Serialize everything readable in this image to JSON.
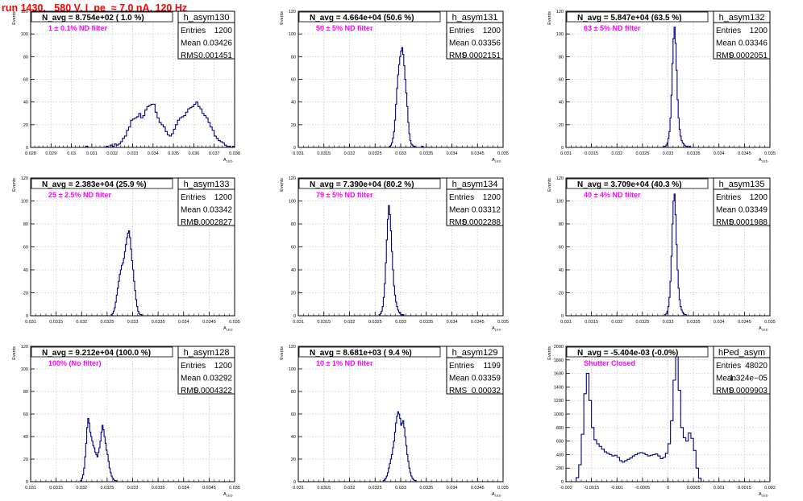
{
  "header": {
    "run_title": "run 1430,   580 V, I_pe  ≈ 7.0 nA, 120 Hz"
  },
  "colors": {
    "title": "#ff0000",
    "histogram_line": "#000080",
    "annotation": "#ff00ff",
    "grid": "#c8c8c8"
  },
  "chart_data": [
    {
      "type": "histogram",
      "name": "h_asym130",
      "stats": {
        "Entries": "1200",
        "Mean": "0.03426",
        "RMS": "0.001451"
      },
      "navg_text": "N_avg = 8.754e+02 ( 1.0 %)",
      "filter_text": "1 ± 0.1% ND filter",
      "xlabel": "A",
      "xlabel_sub": "LED",
      "ylabel": "Events",
      "xlim": [
        0.028,
        0.038
      ],
      "ylim": [
        0,
        120
      ],
      "xticks": [
        0.028,
        0.029,
        0.03,
        0.031,
        0.032,
        0.033,
        0.034,
        0.035,
        0.036,
        0.037,
        0.038
      ],
      "xtick_labels": [
        "0.028",
        "0.029",
        "0.03",
        "0.031",
        "0.032",
        "0.033",
        "0.034",
        "0.035",
        "0.036",
        "0.037",
        "0.038"
      ],
      "yticks": [
        0,
        20,
        40,
        60,
        80,
        100,
        120
      ],
      "ytick_labels": [
        "0",
        "20",
        "40",
        "60",
        "80",
        "100",
        "120"
      ],
      "bins": {
        "start": 0.0307,
        "width": 0.0001,
        "counts": [
          1,
          0,
          0,
          0,
          0,
          0,
          0,
          0,
          0,
          0,
          1,
          0,
          2,
          1,
          3,
          2,
          3,
          5,
          8,
          10,
          15,
          18,
          24,
          25,
          26,
          27,
          30,
          26,
          28,
          33,
          36,
          37,
          38,
          38,
          31,
          26,
          22,
          20,
          18,
          14,
          11,
          10,
          12,
          16,
          20,
          24,
          26,
          27,
          28,
          31,
          34,
          35,
          36,
          38,
          40,
          36,
          34,
          30,
          28,
          26,
          22,
          18,
          15,
          10,
          8,
          6,
          5,
          4,
          2,
          1,
          1,
          0,
          1
        ]
      }
    },
    {
      "type": "histogram",
      "name": "h_asym131",
      "stats": {
        "Entries": "1200",
        "Mean": "0.03356",
        "RMS": "0.0002151"
      },
      "navg_text": "N_avg = 4.664e+04 (50.6 %)",
      "filter_text": "50 ± 5% ND filter",
      "xlabel": "A",
      "xlabel_sub": "LED",
      "ylabel": "Events",
      "xlim": [
        0.031,
        0.035
      ],
      "ylim": [
        0,
        120
      ],
      "xticks": [
        0.031,
        0.0315,
        0.032,
        0.0325,
        0.033,
        0.0335,
        0.034,
        0.0345,
        0.035
      ],
      "xtick_labels": [
        "0.031",
        "0.0315",
        "0.032",
        "0.0325",
        "0.033",
        "0.0335",
        "0.034",
        "0.0345",
        "0.035"
      ],
      "yticks": [
        0,
        20,
        40,
        60,
        80,
        100,
        120
      ],
      "ytick_labels": [
        "0",
        "20",
        "40",
        "60",
        "80",
        "100",
        "120"
      ],
      "bins": {
        "start": 0.03278,
        "width": 2e-05,
        "counts": [
          1,
          2,
          4,
          8,
          14,
          24,
          38,
          52,
          64,
          73,
          80,
          85,
          88,
          82,
          72,
          60,
          48,
          36,
          22,
          12,
          6,
          3,
          2,
          1,
          1,
          0,
          0,
          0,
          0,
          0,
          0,
          0,
          1
        ]
      }
    },
    {
      "type": "histogram",
      "name": "h_asym132",
      "stats": {
        "Entries": "1200",
        "Mean": "0.03346",
        "RMS": "0.0002051"
      },
      "navg_text": "N_avg = 5.847e+04 (63.5 %)",
      "filter_text": "63 ± 5% ND filter",
      "xlabel": "A",
      "xlabel_sub": "LED",
      "ylabel": "Events",
      "xlim": [
        0.031,
        0.035
      ],
      "ylim": [
        0,
        120
      ],
      "xticks": [
        0.031,
        0.0315,
        0.032,
        0.0325,
        0.033,
        0.0335,
        0.034,
        0.0345,
        0.035
      ],
      "xtick_labels": [
        "0.031",
        "0.0315",
        "0.032",
        "0.0325",
        "0.033",
        "0.0335",
        "0.034",
        "0.0345",
        "0.035"
      ],
      "yticks": [
        0,
        20,
        40,
        60,
        80,
        100,
        120
      ],
      "ytick_labels": [
        "0",
        "20",
        "40",
        "60",
        "80",
        "100",
        "120"
      ],
      "bins": {
        "start": 0.03292,
        "width": 2e-05,
        "counts": [
          1,
          1,
          2,
          4,
          8,
          14,
          26,
          46,
          74,
          96,
          106,
          92,
          68,
          42,
          26,
          16,
          10,
          6,
          4,
          3,
          2,
          1,
          1,
          0,
          0,
          1
        ]
      }
    },
    {
      "type": "histogram",
      "name": "h_asym133",
      "stats": {
        "Entries": "1200",
        "Mean": "0.03342",
        "RMS": "0.0002827"
      },
      "navg_text": "N_avg = 2.383e+04 (25.9 %)",
      "filter_text": "25 ± 2.5% ND filter",
      "xlabel": "A",
      "xlabel_sub": "LED",
      "ylabel": "Events",
      "xlim": [
        0.031,
        0.035
      ],
      "ylim": [
        0,
        120
      ],
      "xticks": [
        0.031,
        0.0315,
        0.032,
        0.0325,
        0.033,
        0.0335,
        0.034,
        0.0345,
        0.035
      ],
      "xtick_labels": [
        "0.031",
        "0.0315",
        "0.032",
        "0.0325",
        "0.033",
        "0.0335",
        "0.034",
        "0.0345",
        "0.035"
      ],
      "yticks": [
        0,
        20,
        40,
        60,
        80,
        100,
        120
      ],
      "ytick_labels": [
        "0",
        "20",
        "40",
        "60",
        "80",
        "100",
        "120"
      ],
      "bins": {
        "start": 0.03258,
        "width": 2e-05,
        "counts": [
          1,
          2,
          4,
          7,
          12,
          18,
          24,
          30,
          36,
          40,
          44,
          46,
          50,
          56,
          62,
          68,
          72,
          74,
          68,
          58,
          48,
          40,
          30,
          22,
          14,
          8,
          4,
          2,
          1,
          1
        ]
      }
    },
    {
      "type": "histogram",
      "name": "h_asym134",
      "stats": {
        "Entries": "1200",
        "Mean": "0.03312",
        "RMS": "0.0002288"
      },
      "navg_text": "N_avg = 7.390e+04 (80.2 %)",
      "filter_text": "79 ± 5% ND filter",
      "xlabel": "A",
      "xlabel_sub": "LED",
      "ylabel": "Events",
      "xlim": [
        0.031,
        0.035
      ],
      "ylim": [
        0,
        120
      ],
      "xticks": [
        0.031,
        0.0315,
        0.032,
        0.0325,
        0.033,
        0.0335,
        0.034,
        0.0345,
        0.035
      ],
      "xtick_labels": [
        "0.031",
        "0.0315",
        "0.032",
        "0.0325",
        "0.033",
        "0.0335",
        "0.034",
        "0.0345",
        "0.035"
      ],
      "yticks": [
        0,
        20,
        40,
        60,
        80,
        100,
        120
      ],
      "ytick_labels": [
        "0",
        "20",
        "40",
        "60",
        "80",
        "100",
        "120"
      ],
      "bins": {
        "start": 0.03258,
        "width": 2e-05,
        "counts": [
          1,
          2,
          4,
          8,
          16,
          28,
          46,
          66,
          84,
          96,
          88,
          74,
          56,
          40,
          26,
          18,
          12,
          8,
          5,
          3,
          2,
          1,
          0,
          1
        ]
      }
    },
    {
      "type": "histogram",
      "name": "h_asym135",
      "stats": {
        "Entries": "1200",
        "Mean": "0.03349",
        "RMS": "0.0001988"
      },
      "navg_text": "N_avg = 3.709e+04 (40.3 %)",
      "filter_text": "40 ± 4% ND filter",
      "xlabel": "A",
      "xlabel_sub": "LED",
      "ylabel": "Events",
      "xlim": [
        0.031,
        0.035
      ],
      "ylim": [
        0,
        120
      ],
      "xticks": [
        0.031,
        0.0315,
        0.032,
        0.0325,
        0.033,
        0.0335,
        0.034,
        0.0345,
        0.035
      ],
      "xtick_labels": [
        "0.031",
        "0.0315",
        "0.032",
        "0.0325",
        "0.033",
        "0.0335",
        "0.034",
        "0.0345",
        "0.035"
      ],
      "yticks": [
        0,
        20,
        40,
        60,
        80,
        100,
        120
      ],
      "ytick_labels": [
        "0",
        "20",
        "40",
        "60",
        "80",
        "100",
        "120"
      ],
      "bins": {
        "start": 0.03294,
        "width": 2e-05,
        "counts": [
          1,
          2,
          4,
          8,
          16,
          30,
          52,
          80,
          100,
          106,
          88,
          62,
          40,
          24,
          14,
          8,
          5,
          3,
          2,
          1,
          1
        ]
      }
    },
    {
      "type": "histogram",
      "name": "h_asym128",
      "stats": {
        "Entries": "1200",
        "Mean": "0.03292",
        "RMS": "0.0004322"
      },
      "navg_text": "N_avg = 9.212e+04 (100.0 %)",
      "filter_text": "100% (No filter)",
      "xlabel": "A",
      "xlabel_sub": "LED",
      "ylabel": "Events",
      "xlim": [
        0.031,
        0.035
      ],
      "ylim": [
        0,
        120
      ],
      "xticks": [
        0.031,
        0.0315,
        0.032,
        0.0325,
        0.033,
        0.0335,
        0.034,
        0.0345,
        0.035
      ],
      "xtick_labels": [
        "0.031",
        "0.0315",
        "0.032",
        "0.0325",
        "0.033",
        "0.0335",
        "0.034",
        "0.0345",
        "0.035"
      ],
      "yticks": [
        0,
        20,
        40,
        60,
        80,
        100,
        120
      ],
      "ytick_labels": [
        "0",
        "20",
        "40",
        "60",
        "80",
        "100",
        "120"
      ],
      "bins": {
        "start": 0.03198,
        "width": 2e-05,
        "counts": [
          1,
          3,
          6,
          12,
          22,
          34,
          48,
          56,
          52,
          44,
          40,
          36,
          32,
          30,
          26,
          24,
          22,
          26,
          30,
          36,
          44,
          50,
          46,
          40,
          34,
          28,
          24,
          18,
          12,
          8,
          5,
          3,
          2,
          1,
          1
        ]
      }
    },
    {
      "type": "histogram",
      "name": "h_asym129",
      "stats": {
        "Entries": "1199",
        "Mean": "0.03359",
        "RMS": "0.00032"
      },
      "navg_text": "N_avg = 8.681e+03 ( 9.4 %)",
      "filter_text": "10 ± 1% ND filter",
      "xlabel": "A",
      "xlabel_sub": "LED",
      "ylabel": "Events",
      "xlim": [
        0.031,
        0.035
      ],
      "ylim": [
        0,
        120
      ],
      "xticks": [
        0.031,
        0.0315,
        0.032,
        0.0325,
        0.033,
        0.0335,
        0.034,
        0.0345,
        0.035
      ],
      "xtick_labels": [
        "0.031",
        "0.0315",
        "0.032",
        "0.0325",
        "0.033",
        "0.0335",
        "0.034",
        "0.0345",
        "0.035"
      ],
      "yticks": [
        0,
        20,
        40,
        60,
        80,
        100,
        120
      ],
      "ytick_labels": [
        "0",
        "20",
        "40",
        "60",
        "80",
        "100",
        "120"
      ],
      "bins": {
        "start": 0.03266,
        "width": 2e-05,
        "counts": [
          1,
          2,
          3,
          5,
          8,
          12,
          16,
          20,
          24,
          30,
          36,
          44,
          52,
          58,
          62,
          60,
          56,
          50,
          52,
          54,
          48,
          40,
          32,
          24,
          18,
          12,
          8,
          5,
          3,
          2,
          1,
          1
        ]
      }
    },
    {
      "type": "histogram",
      "name": "hPed_asym",
      "stats": {
        "Entries": "48020",
        "Mean": "1.324e−05",
        "RMS": "0.0009903"
      },
      "navg_text": "N_avg = -5.404e-03 (-0.0%)",
      "filter_text": "Shutter Closed",
      "xlabel": "A",
      "xlabel_sub": "LED",
      "ylabel": "Events",
      "xlim": [
        -0.002,
        0.002
      ],
      "ylim": [
        0,
        2000
      ],
      "xticks": [
        -0.002,
        -0.0015,
        -0.001,
        -0.0005,
        0,
        0.0005,
        0.001,
        0.0015,
        0.002
      ],
      "xtick_labels": [
        "-0.002",
        "-0.0015",
        "-0.001",
        "-0.0005",
        "0",
        "0.0005",
        "0.001",
        "0.0015",
        "0.002"
      ],
      "yticks": [
        0,
        200,
        400,
        600,
        800,
        1000,
        1200,
        1400,
        1600,
        1800,
        2000
      ],
      "ytick_labels": [
        "0",
        "200",
        "400",
        "600",
        "800",
        "1000",
        "1200",
        "1400",
        "1600",
        "1800",
        "2000"
      ],
      "bins": {
        "start": -0.0018,
        "width": 5e-05,
        "counts": [
          60,
          250,
          700,
          1300,
          1600,
          1200,
          800,
          620,
          560,
          520,
          480,
          440,
          420,
          400,
          380,
          390,
          360,
          310,
          290,
          310,
          330,
          350,
          380,
          400,
          420,
          430,
          420,
          400,
          380,
          390,
          400,
          410,
          380,
          340,
          360,
          420,
          560,
          900,
          1500,
          1950,
          1350,
          800,
          650,
          600,
          720,
          640,
          460,
          200,
          50
        ]
      }
    }
  ]
}
